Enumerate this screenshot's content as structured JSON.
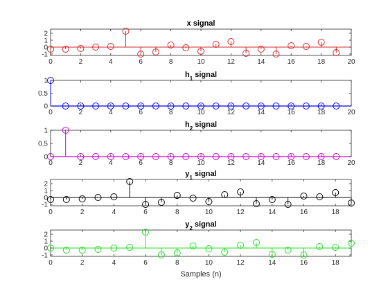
{
  "chart_data": [
    {
      "type": "stem",
      "title": "x signal",
      "title_main": "x",
      "title_sub": "",
      "title_rest": " signal",
      "color": "#d62728",
      "x": [
        0,
        1,
        2,
        3,
        4,
        5,
        6,
        7,
        8,
        9,
        10,
        11,
        12,
        13,
        14,
        15,
        16,
        17,
        18,
        19
      ],
      "values": [
        -0.3,
        -0.3,
        -0.2,
        0,
        0.1,
        2.3,
        -1,
        -0.7,
        0.3,
        -0.1,
        -0.6,
        0.4,
        0.8,
        -0.9,
        -0.3,
        -1,
        0.2,
        0.1,
        0.7,
        -0.8
      ],
      "xlim": [
        0,
        20
      ],
      "ylim": [
        -1.2,
        2.6
      ],
      "xticks": [
        0,
        2,
        4,
        6,
        8,
        10,
        12,
        14,
        16,
        18,
        20
      ],
      "yticks": [
        -1,
        0,
        1,
        2
      ],
      "xlabel": ""
    },
    {
      "type": "stem",
      "title": "h1 signal",
      "title_main": "h",
      "title_sub": "1",
      "title_rest": "  signal",
      "color": "#0000ff",
      "x": [
        0,
        1,
        2,
        3,
        4,
        5,
        6,
        7,
        8,
        9,
        10,
        11,
        12,
        13,
        14,
        15,
        16,
        17,
        18,
        19
      ],
      "values": [
        1,
        0,
        0,
        0,
        0,
        0,
        0,
        0,
        0,
        0,
        0,
        0,
        0,
        0,
        0,
        0,
        0,
        0,
        0,
        0
      ],
      "xlim": [
        0,
        20
      ],
      "ylim": [
        0,
        1
      ],
      "xticks": [
        0,
        2,
        4,
        6,
        8,
        10,
        12,
        14,
        16,
        18,
        20
      ],
      "yticks": [
        0,
        0.5,
        1
      ],
      "xlabel": ""
    },
    {
      "type": "stem",
      "title": "h2 signal",
      "title_main": "h",
      "title_sub": "2",
      "title_rest": "  signal",
      "color": "#cc00cc",
      "x": [
        0,
        1,
        2,
        3,
        4,
        5,
        6,
        7,
        8,
        9,
        10,
        11,
        12,
        13,
        14,
        15,
        16,
        17,
        18,
        19
      ],
      "values": [
        0,
        1,
        0,
        0,
        0,
        0,
        0,
        0,
        0,
        0,
        0,
        0,
        0,
        0,
        0,
        0,
        0,
        0,
        0,
        0
      ],
      "xlim": [
        0,
        20
      ],
      "ylim": [
        0,
        1
      ],
      "xticks": [
        0,
        2,
        4,
        6,
        8,
        10,
        12,
        14,
        16,
        18,
        20
      ],
      "yticks": [
        0,
        0.5,
        1
      ],
      "xlabel": ""
    },
    {
      "type": "stem",
      "title": "y1 signal",
      "title_main": "y",
      "title_sub": "1",
      "title_rest": "  signal",
      "color": "#000000",
      "x": [
        0,
        1,
        2,
        3,
        4,
        5,
        6,
        7,
        8,
        9,
        10,
        11,
        12,
        13,
        14,
        15,
        16,
        17,
        18,
        19
      ],
      "values": [
        -0.3,
        -0.3,
        -0.2,
        0,
        0.1,
        2.3,
        -1,
        -0.7,
        0.3,
        -0.1,
        -0.6,
        0.4,
        0.8,
        -0.9,
        -0.3,
        -1,
        0.2,
        0.1,
        0.7,
        -0.8
      ],
      "xlim": [
        0,
        19
      ],
      "ylim": [
        -1.2,
        2.6
      ],
      "xticks": [
        0,
        2,
        4,
        6,
        8,
        10,
        12,
        14,
        16,
        18
      ],
      "yticks": [
        -1,
        0,
        1,
        2
      ],
      "xlabel": ""
    },
    {
      "type": "stem",
      "title": "y2 signal",
      "title_main": "y",
      "title_sub": "2",
      "title_rest": "  signal",
      "color": "#22dd22",
      "x": [
        0,
        1,
        2,
        3,
        4,
        5,
        6,
        7,
        8,
        9,
        10,
        11,
        12,
        13,
        14,
        15,
        16,
        17,
        18,
        19
      ],
      "values": [
        0,
        -0.3,
        -0.3,
        -0.2,
        0,
        0.1,
        2.3,
        -1,
        -0.7,
        0.3,
        -0.1,
        -0.6,
        0.4,
        0.8,
        -0.9,
        -0.3,
        -1,
        0.2,
        0.1,
        0.7
      ],
      "xlim": [
        0,
        19
      ],
      "ylim": [
        -1.2,
        2.6
      ],
      "xticks": [
        0,
        2,
        4,
        6,
        8,
        10,
        12,
        14,
        16,
        18
      ],
      "yticks": [
        -1,
        0,
        1,
        2
      ],
      "xlabel": "Samples (n)"
    }
  ]
}
